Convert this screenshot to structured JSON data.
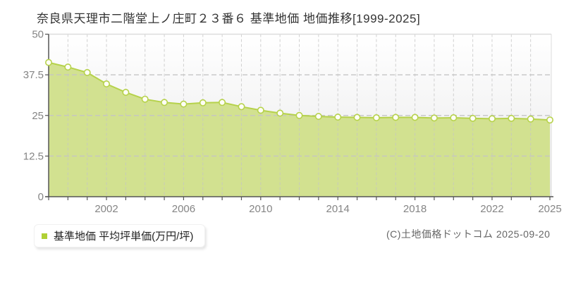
{
  "title": "奈良県天理市二階堂上ノ庄町２３番６ 基準地価 地価推移[1999-2025]",
  "legend": {
    "label": "基準地価 平均坪単価(万円/坪)",
    "marker_color": "#b0d035"
  },
  "copyright": "(C)土地価格ドットコム 2025-09-20",
  "chart_data": {
    "type": "area",
    "title": "奈良県天理市二階堂上ノ庄町２３番６ 基準地価 地価推移[1999-2025]",
    "series_name": "基準地価 平均坪単価(万円/坪)",
    "x": [
      1999,
      2000,
      2001,
      2002,
      2003,
      2004,
      2005,
      2006,
      2007,
      2008,
      2009,
      2010,
      2011,
      2012,
      2013,
      2014,
      2015,
      2016,
      2017,
      2018,
      2019,
      2020,
      2021,
      2022,
      2023,
      2024,
      2025
    ],
    "values": [
      41.3,
      39.9,
      38.2,
      34.7,
      32.1,
      30.0,
      29.0,
      28.5,
      28.9,
      29.0,
      27.7,
      26.6,
      25.7,
      25.0,
      24.7,
      24.5,
      24.4,
      24.3,
      24.4,
      24.4,
      24.2,
      24.3,
      24.1,
      24.0,
      24.1,
      23.9,
      23.6
    ],
    "xlabel": "",
    "ylabel": "",
    "xlim": [
      1999,
      2025
    ],
    "ylim": [
      0,
      50
    ],
    "yticks": [
      0,
      12.5,
      25,
      37.5,
      50
    ],
    "ytick_labels": [
      "0",
      "12.5",
      "25",
      "37.5",
      "50"
    ],
    "xtick_labeled_years": [
      2002,
      2006,
      2010,
      2014,
      2018,
      2022,
      2025
    ],
    "grid": true,
    "legend_position": "bottom-left",
    "colors": {
      "area_fill": "#d2e190",
      "line": "#b6d24b",
      "marker_fill": "#fffef6",
      "marker_stroke": "#b6d24b",
      "grid": "#c4c4c4",
      "axis": "#555555",
      "plot_border": "#dddddd",
      "tick_text": "#858585",
      "bg_top": "#ffffff",
      "bg_bottom": "#e9e9ea"
    }
  }
}
